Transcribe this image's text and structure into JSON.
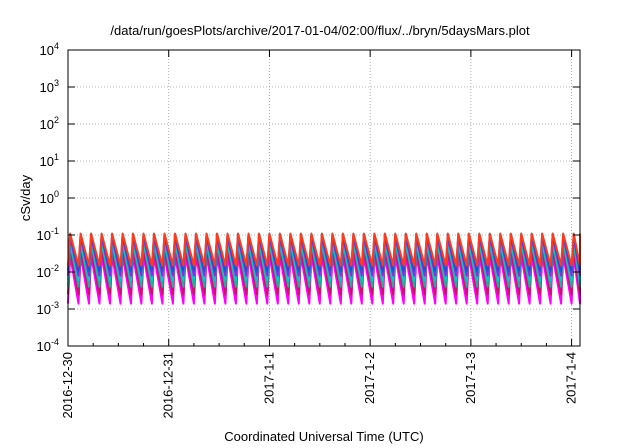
{
  "chart_data": {
    "type": "line",
    "title": "/data/run/goesPlots/archive/2017-01-04/02:00/flux/../bryn/5daysMars.plot",
    "xlabel": "Coordinated Universal Time (UTC)",
    "ylabel": "cSv/day",
    "yscale": "log",
    "ylim": [
      0.0001,
      10000
    ],
    "xlim": [
      "2016-12-30T00:00",
      "2017-01-04T02:00"
    ],
    "grid": true,
    "y_ticks": [
      {
        "base": "10",
        "exp": "-4"
      },
      {
        "base": "10",
        "exp": "-3"
      },
      {
        "base": "10",
        "exp": "-2"
      },
      {
        "base": "10",
        "exp": "-1"
      },
      {
        "base": "10",
        "exp": "0"
      },
      {
        "base": "10",
        "exp": "1"
      },
      {
        "base": "10",
        "exp": "2"
      },
      {
        "base": "10",
        "exp": "3"
      },
      {
        "base": "10",
        "exp": "4"
      }
    ],
    "x_ticks": [
      "2016-12-30",
      "2016-12-31",
      "2017-1-1",
      "2017-1-2",
      "2017-1-3",
      "2017-1-4"
    ],
    "sawtooth_period_hours": 2.5,
    "series": [
      {
        "color": "#ff00ff",
        "peak": 0.028,
        "trough": 0.0014
      },
      {
        "color": "#cc1166",
        "peak": 0.04,
        "trough": 0.0025
      },
      {
        "color": "#2fa89a",
        "peak": 0.06,
        "trough": 0.004
      },
      {
        "color": "#00cccc",
        "peak": 0.07,
        "trough": 0.006
      },
      {
        "color": "#8a2be2",
        "peak": 0.09,
        "trough": 0.008
      },
      {
        "color": "#1f4fd8",
        "peak": 0.105,
        "trough": 0.011
      },
      {
        "color": "#ff3b1f",
        "peak": 0.11,
        "trough": 0.015
      }
    ]
  }
}
